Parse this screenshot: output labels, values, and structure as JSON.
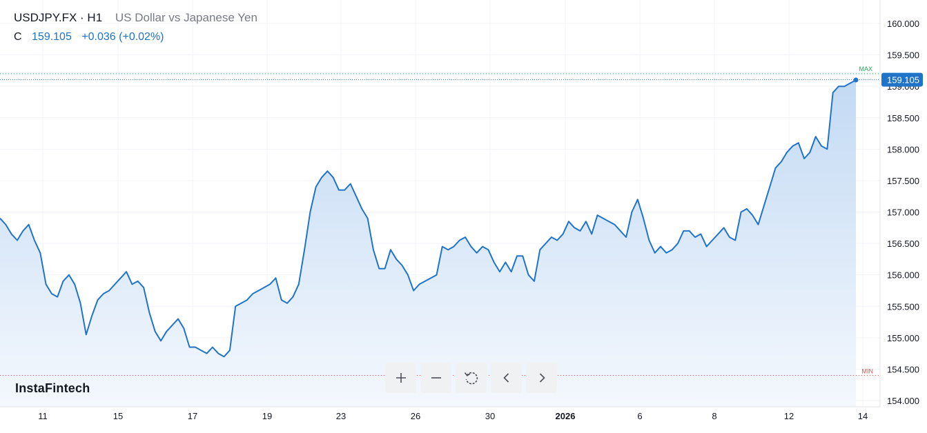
{
  "header": {
    "symbol": "USDJPY.FX · H1",
    "description": "US Dollar vs Japanese Yen",
    "close_label": "C",
    "close_value": "159.105",
    "change": "+0.036 (+0.02%)"
  },
  "brand": "InstaFintech",
  "toolbar": {
    "buttons": [
      "zoom-in-icon",
      "zoom-out-icon",
      "reset-icon",
      "scroll-left-icon",
      "scroll-right-icon"
    ]
  },
  "colors": {
    "line": "#1f73c8",
    "fill_top": "#c3daf4",
    "fill_bottom": "#f4f8fd",
    "max_label": "#26a65b",
    "min_label": "#e0504d",
    "price_badge": "#1f73c8"
  },
  "chart_data": {
    "type": "area",
    "ylim": [
      154.0,
      160.0
    ],
    "y_ticks": [
      "154.000",
      "154.500",
      "155.000",
      "155.500",
      "156.000",
      "156.500",
      "157.000",
      "157.500",
      "158.000",
      "158.500",
      "159.000",
      "159.500",
      "160.000"
    ],
    "x_ticks": [
      "11",
      "15",
      "17",
      "19",
      "23",
      "26",
      "30",
      "2026",
      "6",
      "8",
      "12",
      "14"
    ],
    "last_price_label": "159.105",
    "max_label": "MAX",
    "min_label": "MIN",
    "max_value": 159.2,
    "min_value": 154.4,
    "grid": true,
    "legend": "top-left",
    "series": [
      {
        "values": [
          156.9,
          156.8,
          156.65,
          156.55,
          156.7,
          156.8,
          156.55,
          156.35,
          155.85,
          155.7,
          155.65,
          155.9,
          156.0,
          155.85,
          155.55,
          155.05,
          155.35,
          155.6,
          155.7,
          155.75,
          155.85,
          155.95,
          156.05,
          155.85,
          155.9,
          155.8,
          155.4,
          155.1,
          154.95,
          155.1,
          155.2,
          155.3,
          155.15,
          154.85,
          154.85,
          154.8,
          154.75,
          154.85,
          154.75,
          154.7,
          154.8,
          155.5,
          155.55,
          155.6,
          155.7,
          155.75,
          155.8,
          155.85,
          155.95,
          155.6,
          155.55,
          155.65,
          155.85,
          156.4,
          157.0,
          157.4,
          157.55,
          157.65,
          157.55,
          157.35,
          157.35,
          157.45,
          157.25,
          157.05,
          156.9,
          156.4,
          156.1,
          156.1,
          156.4,
          156.25,
          156.15,
          156.0,
          155.75,
          155.85,
          155.9,
          155.95,
          156.0,
          156.45,
          156.4,
          156.45,
          156.55,
          156.6,
          156.45,
          156.35,
          156.45,
          156.4,
          156.2,
          156.05,
          156.2,
          156.05,
          156.3,
          156.3,
          156.0,
          155.9,
          156.4,
          156.5,
          156.6,
          156.55,
          156.65,
          156.85,
          156.75,
          156.7,
          156.85,
          156.65,
          156.95,
          156.9,
          156.85,
          156.8,
          156.7,
          156.6,
          157.0,
          157.2,
          156.9,
          156.55,
          156.35,
          156.45,
          156.35,
          156.4,
          156.5,
          156.7,
          156.7,
          156.6,
          156.65,
          156.45,
          156.55,
          156.65,
          156.75,
          156.6,
          156.55,
          157.0,
          157.05,
          156.95,
          156.8,
          157.1,
          157.4,
          157.7,
          157.8,
          157.95,
          158.05,
          158.1,
          157.85,
          157.95,
          158.2,
          158.05,
          158.0,
          158.9,
          159.0,
          159.0,
          159.05,
          159.1
        ],
        "values_spec": "hourly closes sampled ~every 8px"
      }
    ]
  }
}
